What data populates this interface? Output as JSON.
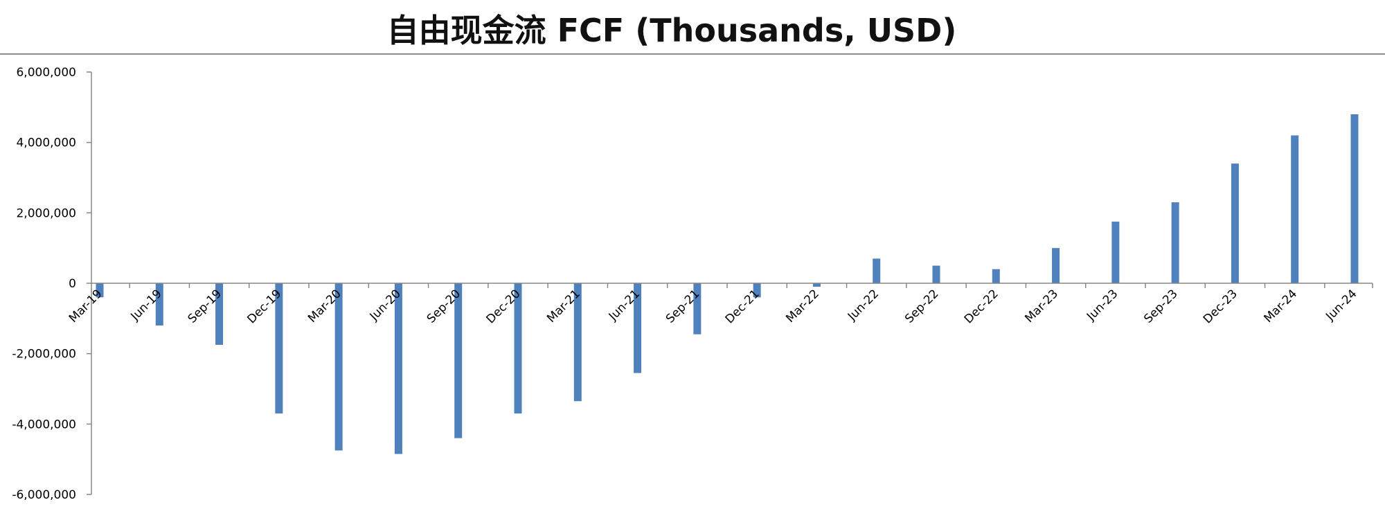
{
  "chart_data": {
    "type": "bar",
    "title": "自由现金流 FCF (Thousands, USD)",
    "xlabel": "",
    "ylabel": "",
    "ylim": [
      -6000000,
      6000000
    ],
    "y_ticks": [
      6000000,
      4000000,
      2000000,
      0,
      -2000000,
      -4000000,
      -6000000
    ],
    "y_tick_labels": [
      "6,000,000",
      "4,000,000",
      "2,000,000",
      "0",
      "-2,000,000",
      "-4,000,000",
      "-6,000,000"
    ],
    "grid": false,
    "legend": "none",
    "bar_color": "#4f81bd",
    "categories": [
      "Mar-19",
      "Jun-19",
      "Sep-19",
      "Dec-19",
      "Mar-20",
      "Jun-20",
      "Sep-20",
      "Dec-20",
      "Mar-21",
      "Jun-21",
      "Sep-21",
      "Dec-21",
      "Mar-22",
      "Jun-22",
      "Sep-22",
      "Dec-22",
      "Mar-23",
      "Jun-23",
      "Sep-23",
      "Dec-23",
      "Mar-24",
      "Jun-24"
    ],
    "values": [
      -400000,
      -1200000,
      -1750000,
      -3700000,
      -4750000,
      -4850000,
      -4400000,
      -3700000,
      -3350000,
      -2550000,
      -1450000,
      -400000,
      -100000,
      700000,
      500000,
      400000,
      1000000,
      1750000,
      2300000,
      3400000,
      4200000,
      4800000
    ]
  }
}
